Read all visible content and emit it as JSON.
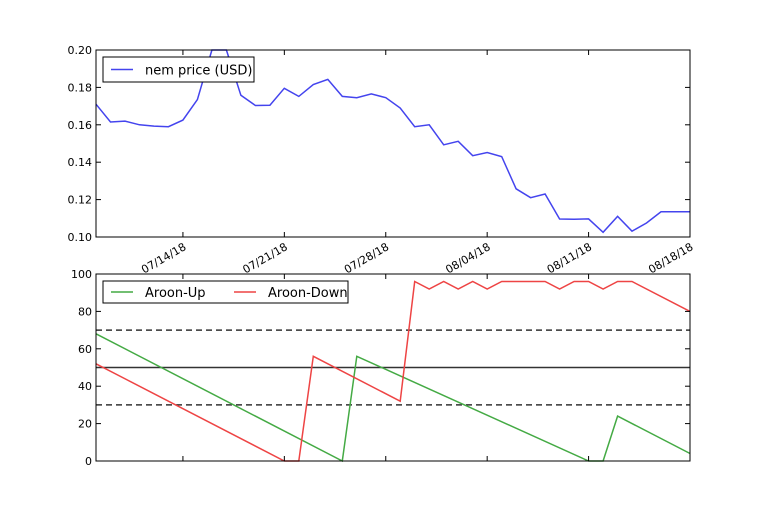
{
  "chart_data": [
    {
      "type": "line",
      "title": "",
      "xlabel": "",
      "ylabel": "",
      "ylim": [
        0.1,
        0.2
      ],
      "yticks": [
        "0.10",
        "0.12",
        "0.14",
        "0.16",
        "0.18",
        "0.20"
      ],
      "xticks": [
        {
          "label": "07/14/18",
          "x": "2018-07-14"
        },
        {
          "label": "07/21/18",
          "x": "2018-07-21"
        },
        {
          "label": "07/28/18",
          "x": "2018-07-28"
        },
        {
          "label": "08/04/18",
          "x": "2018-08-04"
        },
        {
          "label": "08/11/18",
          "x": "2018-08-11"
        },
        {
          "label": "08/18/18",
          "x": "2018-08-18"
        }
      ],
      "legend": {
        "location": "top-left"
      },
      "series": [
        {
          "name": "nem price (USD)",
          "color": "#4444ee",
          "x": [
            "2018-07-08",
            "2018-07-09",
            "2018-07-10",
            "2018-07-11",
            "2018-07-12",
            "2018-07-13",
            "2018-07-14",
            "2018-07-15",
            "2018-07-16",
            "2018-07-17",
            "2018-07-18",
            "2018-07-19",
            "2018-07-20",
            "2018-07-21",
            "2018-07-22",
            "2018-07-23",
            "2018-07-24",
            "2018-07-25",
            "2018-07-26",
            "2018-07-27",
            "2018-07-28",
            "2018-07-29",
            "2018-07-30",
            "2018-07-31",
            "2018-08-01",
            "2018-08-02",
            "2018-08-03",
            "2018-08-04",
            "2018-08-05",
            "2018-08-06",
            "2018-08-07",
            "2018-08-08",
            "2018-08-09",
            "2018-08-10",
            "2018-08-11",
            "2018-08-12",
            "2018-08-13",
            "2018-08-14",
            "2018-08-15",
            "2018-08-16",
            "2018-08-17",
            "2018-08-18"
          ],
          "values": [
            0.171,
            0.1615,
            0.162,
            0.16,
            0.1593,
            0.159,
            0.1625,
            0.1735,
            0.2,
            0.2,
            0.1758,
            0.1703,
            0.1705,
            0.1795,
            0.1752,
            0.1815,
            0.1843,
            0.1752,
            0.1745,
            0.1765,
            0.1745,
            0.169,
            0.159,
            0.16,
            0.1493,
            0.1512,
            0.1435,
            0.1452,
            0.143,
            0.1258,
            0.121,
            0.123,
            0.1096,
            0.1095,
            0.1097,
            0.1025,
            0.111,
            0.1031,
            0.1075,
            0.1135,
            0.1135,
            0.1135
          ]
        }
      ]
    },
    {
      "type": "line",
      "title": "",
      "xlabel": "",
      "ylabel": "",
      "ylim": [
        0,
        100
      ],
      "yticks": [
        "0",
        "20",
        "40",
        "60",
        "80",
        "100"
      ],
      "reference_lines": [
        {
          "y": 70,
          "style": "dashed"
        },
        {
          "y": 50,
          "style": "solid"
        },
        {
          "y": 30,
          "style": "dashed"
        }
      ],
      "legend": {
        "location": "top-left"
      },
      "series": [
        {
          "name": "Aroon-Up",
          "color": "#44aa44",
          "x": [
            "2018-07-08",
            "2018-07-25",
            "2018-07-26",
            "2018-08-11",
            "2018-08-12",
            "2018-08-13",
            "2018-08-18"
          ],
          "values": [
            68,
            0,
            56,
            0,
            0,
            24,
            4
          ]
        },
        {
          "name": "Aroon-Down",
          "color": "#ee4444",
          "x": [
            "2018-07-08",
            "2018-07-21",
            "2018-07-22",
            "2018-07-23",
            "2018-07-29",
            "2018-07-30",
            "2018-07-31",
            "2018-08-01",
            "2018-08-02",
            "2018-08-03",
            "2018-08-04",
            "2018-08-05",
            "2018-08-06",
            "2018-08-07",
            "2018-08-08",
            "2018-08-09",
            "2018-08-10",
            "2018-08-11",
            "2018-08-12",
            "2018-08-13",
            "2018-08-14",
            "2018-08-18"
          ],
          "values": [
            52,
            0,
            0,
            56,
            32,
            96,
            92,
            96,
            92,
            96,
            92,
            96,
            96,
            96,
            96,
            92,
            96,
            96,
            92,
            96,
            96,
            80
          ]
        }
      ]
    }
  ]
}
